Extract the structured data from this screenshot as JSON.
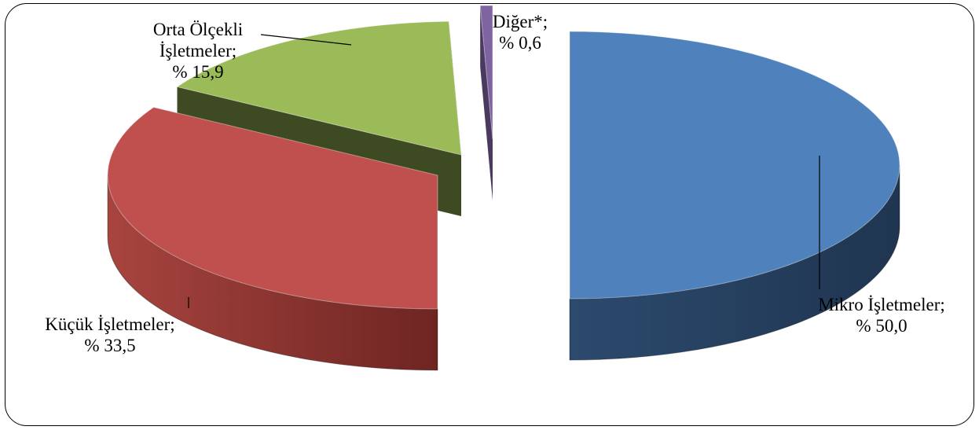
{
  "chart_data": {
    "type": "pie",
    "title": "",
    "slices": [
      {
        "name": "Mikro İşletmeler",
        "value": 50.0,
        "label_lines": [
          "Mikro İşletmeler;",
          "% 50,0"
        ],
        "color": "#4F81BD",
        "side_color": "#2C4A6E"
      },
      {
        "name": "Küçük İşletmeler",
        "value": 33.5,
        "label_lines": [
          "Küçük İşletmeler;",
          "% 33,5"
        ],
        "color": "#C0504D",
        "side_color": "#7A2E2C"
      },
      {
        "name": "Orta Ölçekli İşletmeler",
        "value": 15.9,
        "label_lines": [
          "Orta Ölçekli",
          "İşletmeler;",
          "% 15,9"
        ],
        "color": "#9BBB59",
        "side_color": "#3E4A22"
      },
      {
        "name": "Diğer*",
        "value": 0.6,
        "label_lines": [
          "Diğer*;",
          "% 0,6"
        ],
        "color": "#8064A2",
        "side_color": "#4A3A60"
      }
    ],
    "exploded": true,
    "three_d": true,
    "legend": "none"
  }
}
